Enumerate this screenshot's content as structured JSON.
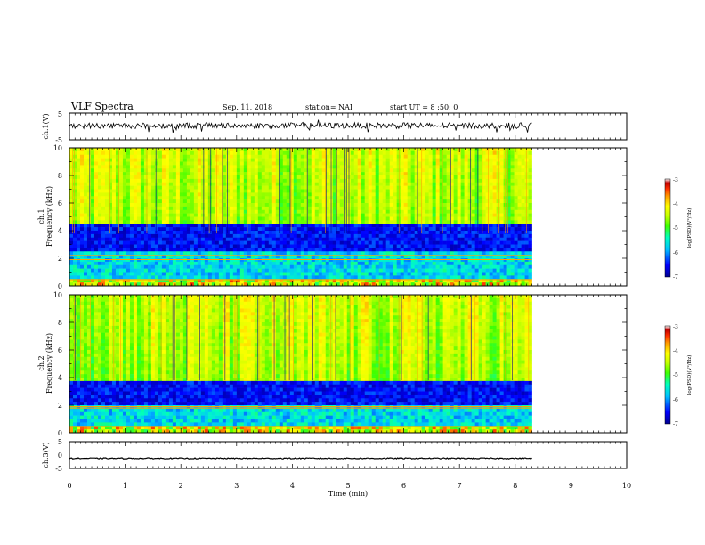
{
  "header": {
    "title": "VLF Spectra",
    "date": "Sep. 11, 2018",
    "station": "station= NAI",
    "start": "start UT = 8 :50: 0"
  },
  "chart_data": [
    {
      "name": "ch1-waveform",
      "type": "line",
      "ylabel": "ch.1(V)",
      "ylim": [
        -5,
        5
      ],
      "yticks": [
        "5",
        "-5"
      ],
      "xlim": [
        0,
        10
      ],
      "data_end_min": 8.3,
      "baseline": 0.3,
      "color": "#000000"
    },
    {
      "name": "ch1-spectrogram",
      "type": "heatmap",
      "ylabel_line1": "ch.1",
      "ylabel_line2": "Frequency (kHz)",
      "ylim": [
        0,
        10
      ],
      "yticks": [
        "0",
        "2",
        "4",
        "6",
        "8",
        "10"
      ],
      "xlim": [
        0,
        10
      ],
      "data_end_min": 8.3,
      "quiet_band_khz": [
        2.4,
        4.6
      ],
      "colorbar_label": "log(PSD)(V²/Hz)",
      "colorbar_ticks": [
        "-3",
        "-4",
        "-5",
        "-6",
        "-7"
      ],
      "colorbar_range": [
        -7,
        -3
      ]
    },
    {
      "name": "ch2-spectrogram",
      "type": "heatmap",
      "ylabel_line1": "ch.2",
      "ylabel_line2": "Frequency (kHz)",
      "ylim": [
        0,
        10
      ],
      "yticks": [
        "0",
        "2",
        "4",
        "6",
        "8",
        "10"
      ],
      "xlim": [
        0,
        10
      ],
      "data_end_min": 8.3,
      "quiet_band_khz": [
        2.0,
        3.7
      ],
      "colorbar_label": "log(PSD)(V²/Hz)",
      "colorbar_ticks": [
        "-3",
        "-4",
        "-5",
        "-6",
        "-7"
      ],
      "colorbar_range": [
        -7,
        -3
      ]
    },
    {
      "name": "ch3-waveform",
      "type": "line",
      "ylabel": "ch.3(V)",
      "ylim": [
        -5,
        5
      ],
      "yticks": [
        "5",
        "0",
        "-5"
      ],
      "xlim": [
        0,
        10
      ],
      "data_end_min": 8.3,
      "baseline": -1.2,
      "color": "#000000"
    }
  ],
  "xaxis": {
    "label": "Time (min)",
    "ticks": [
      "0",
      "1",
      "2",
      "3",
      "4",
      "5",
      "6",
      "7",
      "8",
      "9",
      "10"
    ]
  },
  "colormap": [
    "#00008f",
    "#0000ff",
    "#00bfff",
    "#00ffc0",
    "#40ff00",
    "#c0ff00",
    "#ffff00",
    "#ffa000",
    "#ff3000",
    "#c00000",
    "#ffffff"
  ]
}
